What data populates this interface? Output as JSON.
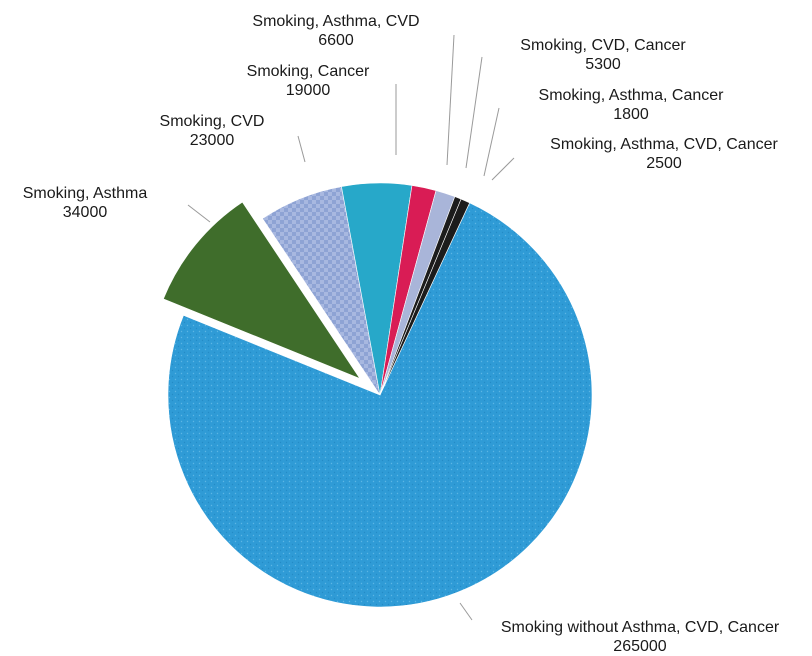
{
  "chart_data": {
    "type": "pie",
    "slices": [
      {
        "label": "Smoking without Asthma, CVD, Cancer",
        "value": 265000,
        "display_value": "265000",
        "color": "#2f9bd6",
        "pattern": "dots",
        "exploded": false
      },
      {
        "label": "Smoking, Asthma",
        "value": 34000,
        "display_value": "34000",
        "color": "#3f6d2b",
        "pattern": "none",
        "exploded": true
      },
      {
        "label": "Smoking, CVD",
        "value": 23000,
        "display_value": "23000",
        "color": "#8ea3d4",
        "pattern": "checker",
        "exploded": false
      },
      {
        "label": "Smoking, Cancer",
        "value": 19000,
        "display_value": "19000",
        "color": "#27a8c9",
        "pattern": "none",
        "exploded": false
      },
      {
        "label": "Smoking, Asthma, CVD",
        "value": 6600,
        "display_value": "6600",
        "color": "#d91c55",
        "pattern": "none",
        "exploded": false
      },
      {
        "label": "Smoking, CVD, Cancer",
        "value": 5300,
        "display_value": "5300",
        "color": "#a9b5d9",
        "pattern": "none",
        "exploded": false
      },
      {
        "label": "Smoking, Asthma, Cancer",
        "value": 1800,
        "display_value": "1800",
        "color": "#1c1c1c",
        "pattern": "none",
        "exploded": false
      },
      {
        "label": "Smoking, Asthma, CVD, Cancer",
        "value": 2500,
        "display_value": "2500",
        "color": "#1c1c1c",
        "pattern": "none",
        "exploded": false
      }
    ],
    "legend": "none",
    "labels": "outside-with-leader-lines"
  }
}
